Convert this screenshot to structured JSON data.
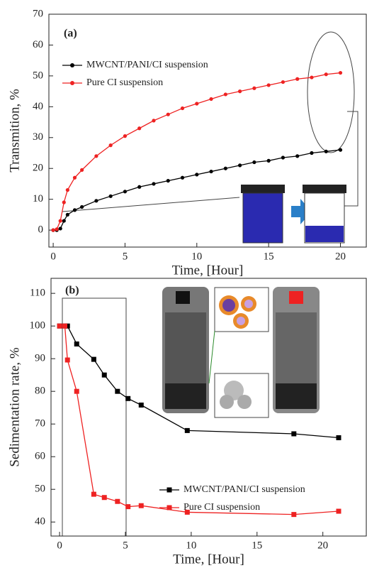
{
  "chart_data": [
    {
      "type": "line",
      "annotation": "(a)",
      "xlabel": "Time, [Hour]",
      "ylabel": "Transmition, %",
      "marker": "circle",
      "x": [
        0,
        0.25,
        0.5,
        0.75,
        1,
        1.5,
        2,
        3,
        4,
        5,
        6,
        7,
        8,
        9,
        10,
        11,
        12,
        13,
        14,
        15,
        16,
        17,
        18,
        19,
        20
      ],
      "series": [
        {
          "name": "MWCNT/PANI/CI suspension",
          "color": "#000000",
          "values": [
            0,
            0,
            0.5,
            3,
            5,
            6.5,
            7.5,
            9.5,
            11,
            12.5,
            14,
            15,
            16,
            17,
            18,
            19,
            20,
            21,
            22,
            22.5,
            23.5,
            24,
            25,
            25.5,
            26
          ]
        },
        {
          "name": "Pure CI suspension",
          "color": "#ee2222",
          "values": [
            0,
            0.3,
            3,
            9,
            13,
            17,
            19.5,
            24,
            27.5,
            30.5,
            33,
            35.5,
            37.5,
            39.5,
            41,
            42.5,
            44,
            45,
            46,
            47,
            48,
            49,
            49.5,
            50.5,
            51
          ]
        }
      ],
      "xlim": [
        -0.3,
        21.8
      ],
      "xticks": [
        0,
        5,
        10,
        15,
        20
      ],
      "ylim": [
        -5.5,
        70
      ],
      "yticks": [
        0,
        10,
        20,
        30,
        40,
        50,
        60,
        70
      ]
    },
    {
      "type": "line",
      "annotation": "(b)",
      "xlabel": "Time, [Hour]",
      "ylabel": "Sedimentation rate, %",
      "marker": "square",
      "x": [
        0,
        0.4,
        0.6,
        1.3,
        2.6,
        3.4,
        4.4,
        5.2,
        6.2,
        9.7,
        17.8,
        21.2
      ],
      "series": [
        {
          "name": "MWCNT/PANI/CI suspension",
          "color": "#000000",
          "values": [
            100,
            100,
            100,
            94.5,
            89.8,
            85,
            80,
            77.8,
            75.8,
            68,
            67,
            65.8
          ]
        },
        {
          "name": "Pure CI suspension",
          "color": "#ee2222",
          "values": [
            100,
            100,
            89.6,
            80,
            48.5,
            47.5,
            46.3,
            44.7,
            45,
            43,
            42.3,
            43.3
          ]
        }
      ],
      "xlim": [
        -0.65,
        23.3
      ],
      "xticks": [
        0,
        5,
        10,
        15,
        20
      ],
      "ylim": [
        35.7,
        114.6
      ],
      "yticks": [
        40,
        50,
        60,
        70,
        80,
        90,
        100,
        110
      ]
    }
  ]
}
